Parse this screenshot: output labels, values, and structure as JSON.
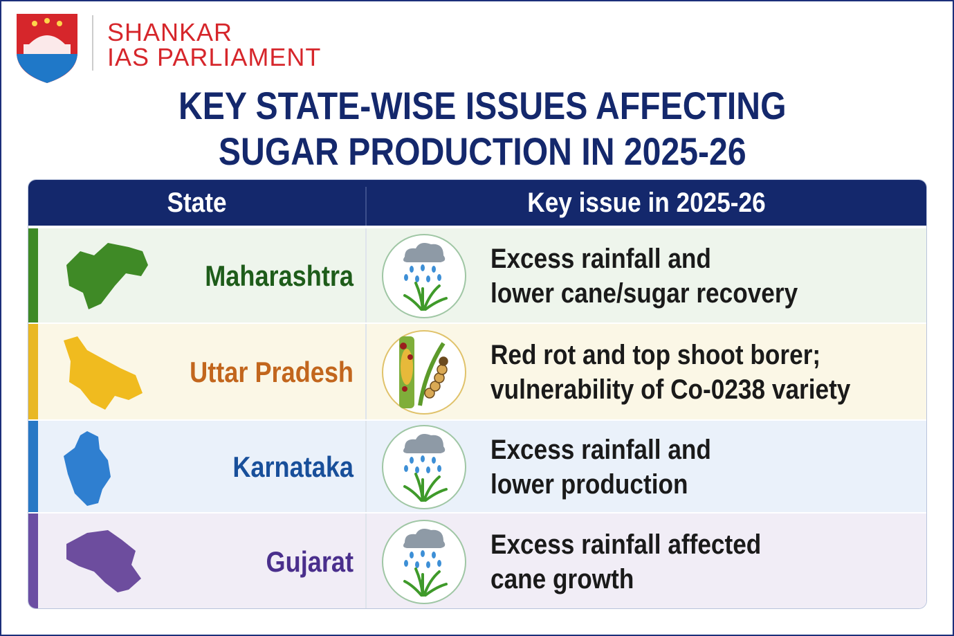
{
  "header": {
    "brand": [
      "SHANKAR",
      "IAS PARLIAMENT"
    ],
    "title": [
      "KEY STATE-WISE ISSUES AFFECTING",
      "SUGAR PRODUCTION IN 2025-26"
    ]
  },
  "table": {
    "columns": [
      "State",
      "Key issue in 2025-26"
    ],
    "rows": [
      {
        "state": "Maharashtra",
        "issue": [
          "Excess rainfall and",
          "lower cane/sugar recovery"
        ]
      },
      {
        "state": "Uttar Pradesh",
        "issue": [
          "Red rot and top shoot borer;",
          "vulnerability of Co-0238 variety"
        ]
      },
      {
        "state": "Karnataka",
        "issue": [
          "Excess rainfall and",
          "lower production"
        ]
      },
      {
        "state": "Gujarat",
        "issue": [
          "Excess rainfall affected",
          "cane growth"
        ]
      }
    ]
  }
}
